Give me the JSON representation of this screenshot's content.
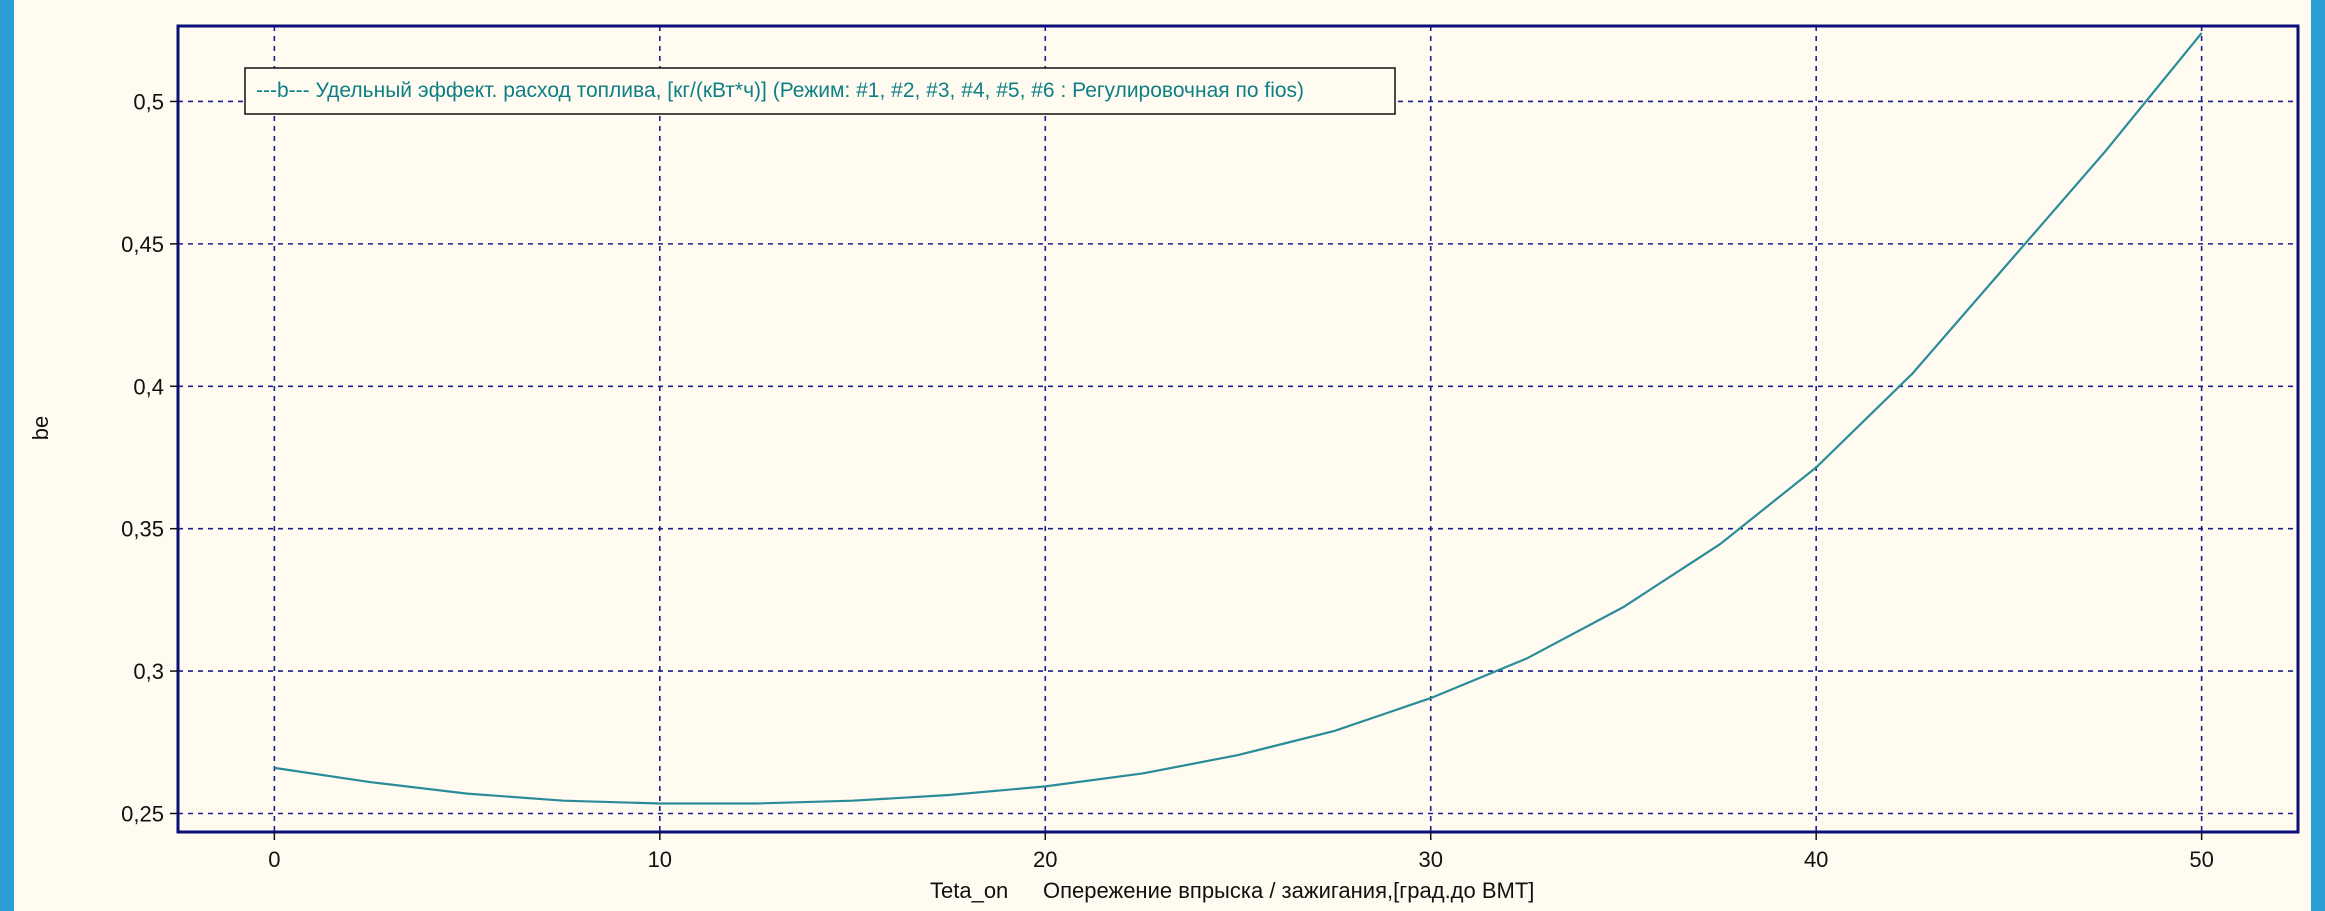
{
  "chart_data": {
    "type": "line",
    "title": "",
    "xlabel_var": "Teta_on",
    "xlabel": "Опережение впрыска / зажигания,[град.до ВМТ]",
    "ylabel": "be",
    "xlim": [
      -2.5,
      52.5
    ],
    "ylim": [
      0.2435,
      0.5265
    ],
    "x_ticks": [
      0,
      10,
      20,
      30,
      40,
      50
    ],
    "x_tick_labels": [
      "0",
      "10",
      "20",
      "30",
      "40",
      "50"
    ],
    "y_ticks": [
      0.25,
      0.3,
      0.35,
      0.4,
      0.45,
      0.5
    ],
    "y_tick_labels": [
      "0,25",
      "0,3",
      "0,35",
      "0,4",
      "0,45",
      "0,5"
    ],
    "grid": true,
    "legend_position": "top-left",
    "series": [
      {
        "name": "---b---   Удельный эффект. расход топлива, [кг/(кВт*ч)] (Режим: #1, #2, #3, #4, #5, #6 : Регулировочная по fios)",
        "color": "#2a8c98",
        "x": [
          0,
          2.5,
          5,
          7.5,
          10,
          12.5,
          15,
          17.5,
          20,
          22.5,
          25,
          27.5,
          30,
          32.5,
          35,
          37.5,
          40,
          42.5,
          45,
          47.5,
          50
        ],
        "y": [
          0.266,
          0.261,
          0.257,
          0.2545,
          0.2535,
          0.2535,
          0.2545,
          0.2565,
          0.2595,
          0.264,
          0.2705,
          0.279,
          0.2905,
          0.3045,
          0.3225,
          0.3445,
          0.3715,
          0.4045,
          0.4435,
          0.4825,
          0.524
        ]
      }
    ]
  },
  "colors": {
    "grid": "#1a1f8f",
    "frame": "#0a0f7a",
    "background": "#fffbf0"
  }
}
